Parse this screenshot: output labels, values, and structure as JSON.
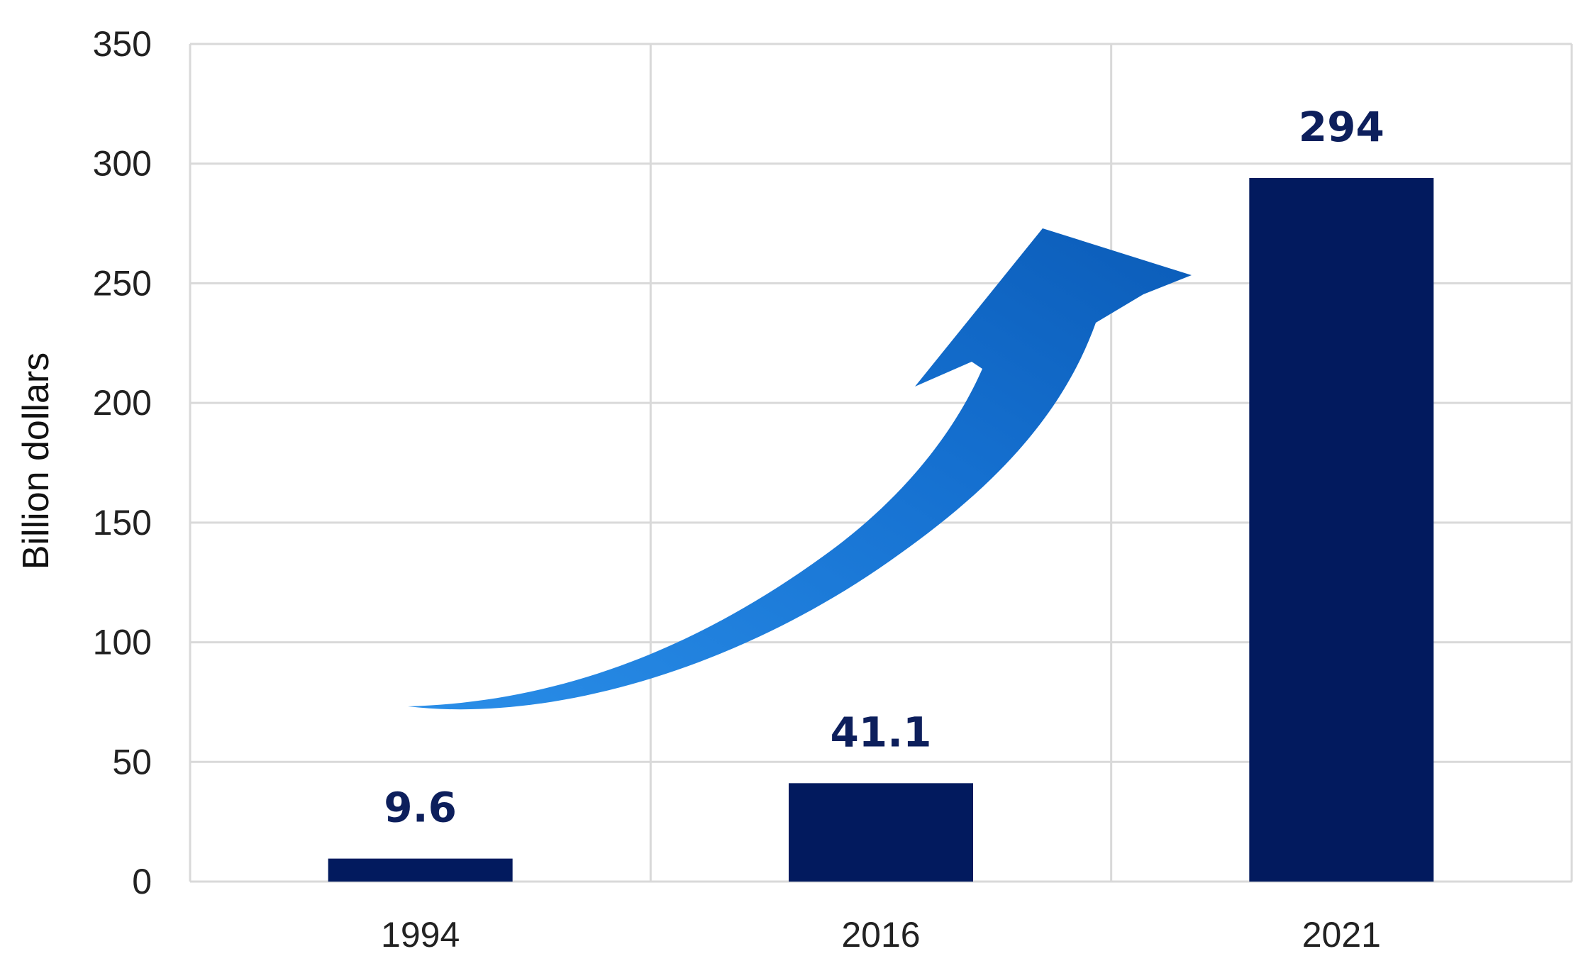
{
  "chart_data": {
    "type": "bar",
    "categories": [
      "1994",
      "2016",
      "2021"
    ],
    "values": [
      9.6,
      41.1,
      294
    ],
    "data_labels": [
      "9.6",
      "41.1",
      "294"
    ],
    "ylabel": "Billion dollars",
    "ylim": [
      0,
      350
    ],
    "yticks": [
      0,
      50,
      100,
      150,
      200,
      250,
      300,
      350
    ],
    "ytick_labels": [
      "0",
      "50",
      "100",
      "150",
      "200",
      "250",
      "300",
      "350"
    ],
    "grid": true,
    "legend": "none",
    "bar_color": "#021a5e",
    "label_color": "#0d1f5c",
    "grid_color": "#d9d9d9",
    "annotation": "curved-upward-growth-arrow",
    "arrow_color": "#1565c0"
  }
}
